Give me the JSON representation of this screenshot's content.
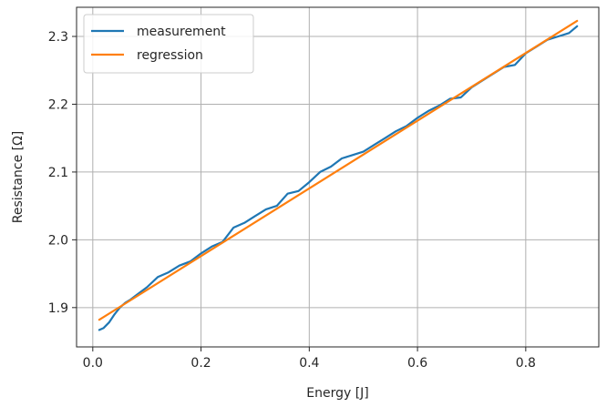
{
  "chart_data": {
    "type": "line",
    "title": "",
    "xlabel": "Energy [J]",
    "ylabel": "Resistance [Ω]",
    "xlim": [
      -0.03,
      0.935
    ],
    "ylim": [
      1.842,
      2.343
    ],
    "xticks": [
      0.0,
      0.2,
      0.4,
      0.6,
      0.8
    ],
    "xtick_labels": [
      "0.0",
      "0.2",
      "0.4",
      "0.6",
      "0.8"
    ],
    "yticks": [
      1.9,
      2.0,
      2.1,
      2.2,
      2.3
    ],
    "ytick_labels": [
      "1.9",
      "2.0",
      "2.1",
      "2.2",
      "2.3"
    ],
    "grid": true,
    "legend": {
      "position": "upper left"
    },
    "series": [
      {
        "name": "measurement",
        "color": "#1f77b4",
        "x": [
          0.012,
          0.02,
          0.03,
          0.04,
          0.05,
          0.06,
          0.07,
          0.08,
          0.1,
          0.12,
          0.14,
          0.16,
          0.18,
          0.2,
          0.22,
          0.24,
          0.26,
          0.28,
          0.3,
          0.32,
          0.34,
          0.36,
          0.38,
          0.4,
          0.42,
          0.44,
          0.46,
          0.48,
          0.5,
          0.52,
          0.54,
          0.56,
          0.58,
          0.6,
          0.62,
          0.64,
          0.66,
          0.68,
          0.7,
          0.72,
          0.74,
          0.76,
          0.78,
          0.8,
          0.82,
          0.84,
          0.86,
          0.88,
          0.895
        ],
        "y": [
          1.867,
          1.87,
          1.878,
          1.89,
          1.9,
          1.907,
          1.912,
          1.918,
          1.93,
          1.945,
          1.952,
          1.962,
          1.968,
          1.98,
          1.99,
          1.997,
          2.018,
          2.025,
          2.035,
          2.045,
          2.05,
          2.068,
          2.072,
          2.085,
          2.1,
          2.108,
          2.12,
          2.125,
          2.13,
          2.14,
          2.15,
          2.16,
          2.168,
          2.18,
          2.19,
          2.198,
          2.208,
          2.21,
          2.225,
          2.235,
          2.245,
          2.255,
          2.258,
          2.275,
          2.285,
          2.295,
          2.3,
          2.305,
          2.315
        ]
      },
      {
        "name": "regression",
        "color": "#ff7f0e",
        "x": [
          0.012,
          0.895
        ],
        "y": [
          1.882,
          2.323
        ]
      }
    ]
  }
}
